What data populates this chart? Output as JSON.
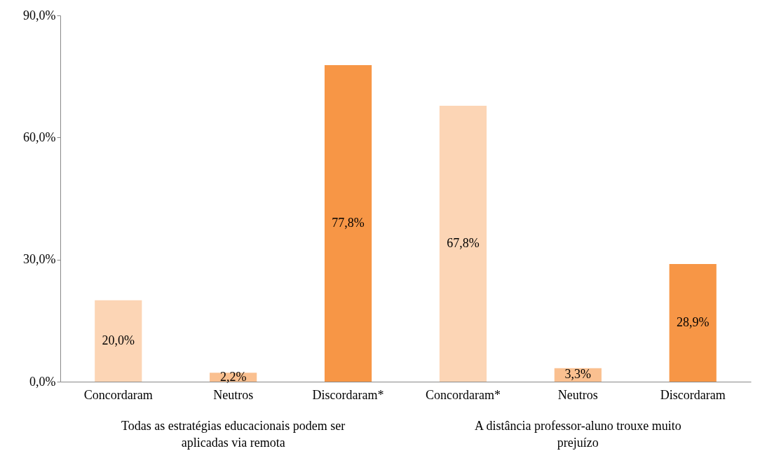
{
  "chart_data": {
    "type": "bar",
    "categories": [
      "Concordaram",
      "Neutros",
      "Discordaram*",
      "Concordaram*",
      "Neutros",
      "Discordaram"
    ],
    "values": [
      20.0,
      2.2,
      77.8,
      67.8,
      3.3,
      28.9
    ],
    "colors": [
      "#fcd5b5",
      "#fac090",
      "#f79646",
      "#fcd5b5",
      "#fac090",
      "#f79646"
    ],
    "value_labels": [
      "20,0%",
      "2,2%",
      "77,8%",
      "67,8%",
      "3,3%",
      "28,9%"
    ],
    "ylim": [
      0,
      90
    ],
    "yticks": [
      {
        "value": 0,
        "label": "0,0%"
      },
      {
        "value": 30,
        "label": "30,0%"
      },
      {
        "value": 60,
        "label": "60,0%"
      },
      {
        "value": 90,
        "label": "90,0%"
      }
    ],
    "annotations": [
      "Todas as estratégias educacionais podem ser aplicadas via remota",
      "A distância professor-aluno trouxe muito prejuízo"
    ],
    "grid": false
  }
}
